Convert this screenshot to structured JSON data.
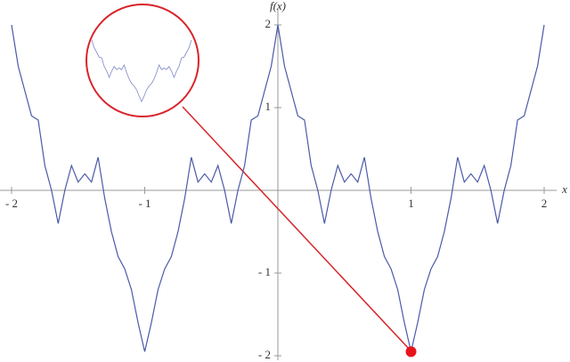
{
  "chart_data": {
    "type": "line",
    "x_label": "x",
    "y_label": "f(x)",
    "x": [
      -2,
      -1.95,
      -1.9,
      -1.85,
      -1.8,
      -1.75,
      -1.7,
      -1.65,
      -1.6,
      -1.55,
      -1.5,
      -1.45,
      -1.4,
      -1.35,
      -1.3,
      -1.25,
      -1.2,
      -1.15,
      -1.1,
      -1.05,
      -1,
      -0.95,
      -0.9,
      -0.85,
      -0.8,
      -0.75,
      -0.7,
      -0.65,
      -0.6,
      -0.55,
      -0.5,
      -0.45,
      -0.4,
      -0.35,
      -0.3,
      -0.25,
      -0.2,
      -0.15,
      -0.1,
      -0.05,
      0,
      0.05,
      0.1,
      0.15,
      0.2,
      0.25,
      0.3,
      0.35,
      0.4,
      0.45,
      0.5,
      0.55,
      0.6,
      0.65,
      0.7,
      0.75,
      0.8,
      0.85,
      0.9,
      0.95,
      1,
      1.05,
      1.1,
      1.15,
      1.2,
      1.25,
      1.3,
      1.35,
      1.4,
      1.45,
      1.5,
      1.55,
      1.6,
      1.65,
      1.7,
      1.75,
      1.8,
      1.85,
      1.9,
      1.95,
      2
    ],
    "values": [
      2.0,
      1.5,
      1.2,
      0.9,
      0.85,
      0.3,
      0.0,
      -0.4,
      0.0,
      0.3,
      0.1,
      0.2,
      0.1,
      0.4,
      -0.1,
      -0.5,
      -0.8,
      -0.95,
      -1.2,
      -1.6,
      -1.95,
      -1.6,
      -1.2,
      -0.95,
      -0.8,
      -0.5,
      -0.1,
      0.4,
      0.1,
      0.2,
      0.1,
      0.3,
      0.0,
      -0.4,
      0.0,
      0.3,
      0.85,
      0.9,
      1.2,
      1.5,
      2.0,
      1.5,
      1.2,
      0.9,
      0.85,
      0.3,
      0.0,
      -0.4,
      0.0,
      0.3,
      0.1,
      0.2,
      0.1,
      0.4,
      -0.1,
      -0.5,
      -0.8,
      -0.95,
      -1.2,
      -1.6,
      -1.95,
      -1.6,
      -1.2,
      -0.95,
      -0.8,
      -0.5,
      -0.1,
      0.4,
      0.1,
      0.2,
      0.1,
      0.3,
      0.0,
      -0.4,
      0.0,
      0.3,
      0.85,
      0.9,
      1.2,
      1.5,
      2.0
    ],
    "color": "#4a5aa8",
    "xlim": [
      -2,
      2
    ],
    "ylim": [
      -2,
      2
    ],
    "xticks": [
      {
        "value": -2,
        "label": "- 2"
      },
      {
        "value": -1,
        "label": "- 1"
      },
      1,
      2
    ],
    "yticks": [
      {
        "value": -2,
        "label": "- 2"
      },
      {
        "value": -1,
        "label": "- 1"
      },
      1,
      2
    ],
    "highlight": {
      "x": 1,
      "y": -1.95,
      "color": "#e8141c"
    }
  }
}
